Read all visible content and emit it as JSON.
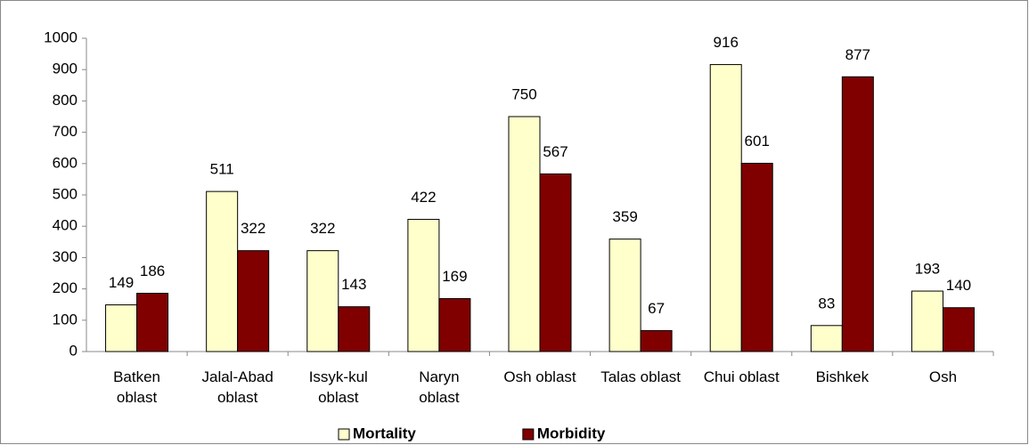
{
  "chart_data": {
    "type": "bar",
    "categories": [
      "Batken\noblast",
      "Jalal-Abad\noblast",
      "Issyk-kul\noblast",
      "Naryn\noblast",
      "Osh oblast",
      "Talas oblast",
      "Chui oblast",
      "Bishkek",
      "Osh"
    ],
    "series": [
      {
        "name": "Mortality",
        "color": "#ffffcc",
        "values": [
          149,
          511,
          322,
          422,
          750,
          359,
          916,
          83,
          193
        ]
      },
      {
        "name": "Morbidity",
        "color": "#800000",
        "values": [
          186,
          322,
          143,
          169,
          567,
          67,
          601,
          877,
          140
        ]
      }
    ],
    "ylim": [
      0,
      1000
    ],
    "yticks": [
      0,
      100,
      200,
      300,
      400,
      500,
      600,
      700,
      800,
      900,
      1000
    ],
    "grid": false,
    "legend": "bottom"
  }
}
